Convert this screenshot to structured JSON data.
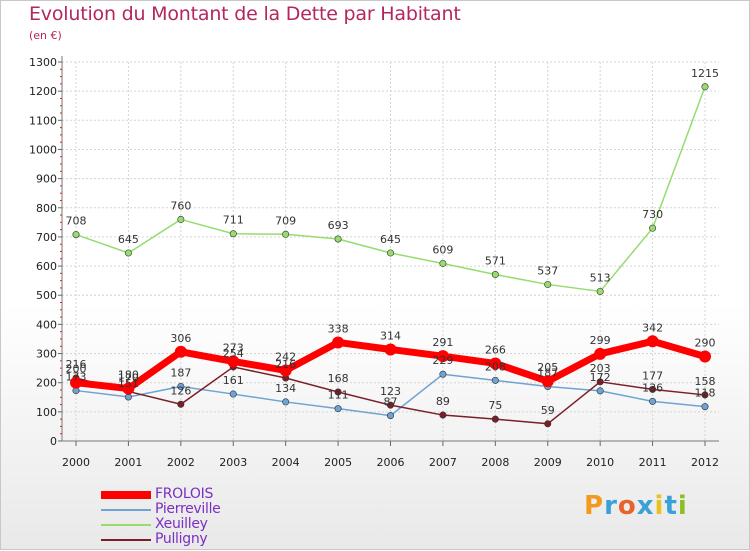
{
  "title": "Evolution du Montant de la Dette par Habitant",
  "subtitle": "(en €)",
  "logo": {
    "text": "Proxiti",
    "colors": [
      "#f29a1f",
      "#3aa0d8",
      "#e8632b",
      "#3aa0d8",
      "#e8c31f",
      "#3aa0d8",
      "#8cbf26"
    ]
  },
  "chart_data": {
    "type": "line",
    "x": [
      "2000",
      "2001",
      "2002",
      "2003",
      "2004",
      "2005",
      "2006",
      "2007",
      "2008",
      "2009",
      "2010",
      "2011",
      "2012"
    ],
    "ylim": [
      0,
      1300
    ],
    "yticks": [
      0,
      100,
      200,
      300,
      400,
      500,
      600,
      700,
      800,
      900,
      1000,
      1100,
      1200,
      1300
    ],
    "grid": true,
    "legend_position": "bottom-left",
    "series": [
      {
        "name": "FROLOIS",
        "color": "#ff0000",
        "values": [
          200,
          180,
          306,
          273,
          242,
          338,
          314,
          291,
          266,
          205,
          299,
          342,
          290
        ],
        "labels": [
          "200",
          "180",
          "306",
          "273",
          "242",
          "338",
          "314",
          "291",
          "266",
          "205",
          "299",
          "342",
          "290"
        ]
      },
      {
        "name": "Pierreville",
        "color": "#6ea3d2",
        "values": [
          173,
          151,
          187,
          161,
          134,
          111,
          87,
          229,
          208,
          187,
          172,
          136,
          118
        ],
        "labels": [
          "173",
          "151",
          "187",
          "161",
          "134",
          "111",
          "87",
          "229",
          "208",
          "187",
          "172",
          "136",
          "118"
        ]
      },
      {
        "name": "Xeuilley",
        "color": "#97dc6f",
        "values": [
          708,
          645,
          760,
          711,
          709,
          693,
          645,
          609,
          571,
          537,
          513,
          730,
          1215
        ],
        "labels": [
          "708",
          "645",
          "760",
          "711",
          "709",
          "693",
          "645",
          "609",
          "571",
          "537",
          "513",
          "730",
          "1215"
        ]
      },
      {
        "name": "Pulligny",
        "color": "#7a1f27",
        "values": [
          216,
          170,
          126,
          254,
          216,
          168,
          123,
          89,
          75,
          59,
          203,
          177,
          158
        ],
        "labels": [
          "216",
          "170",
          "126",
          "254",
          "216",
          "168",
          "123",
          "89",
          "75",
          "59",
          "203",
          "177",
          "158"
        ]
      }
    ]
  }
}
